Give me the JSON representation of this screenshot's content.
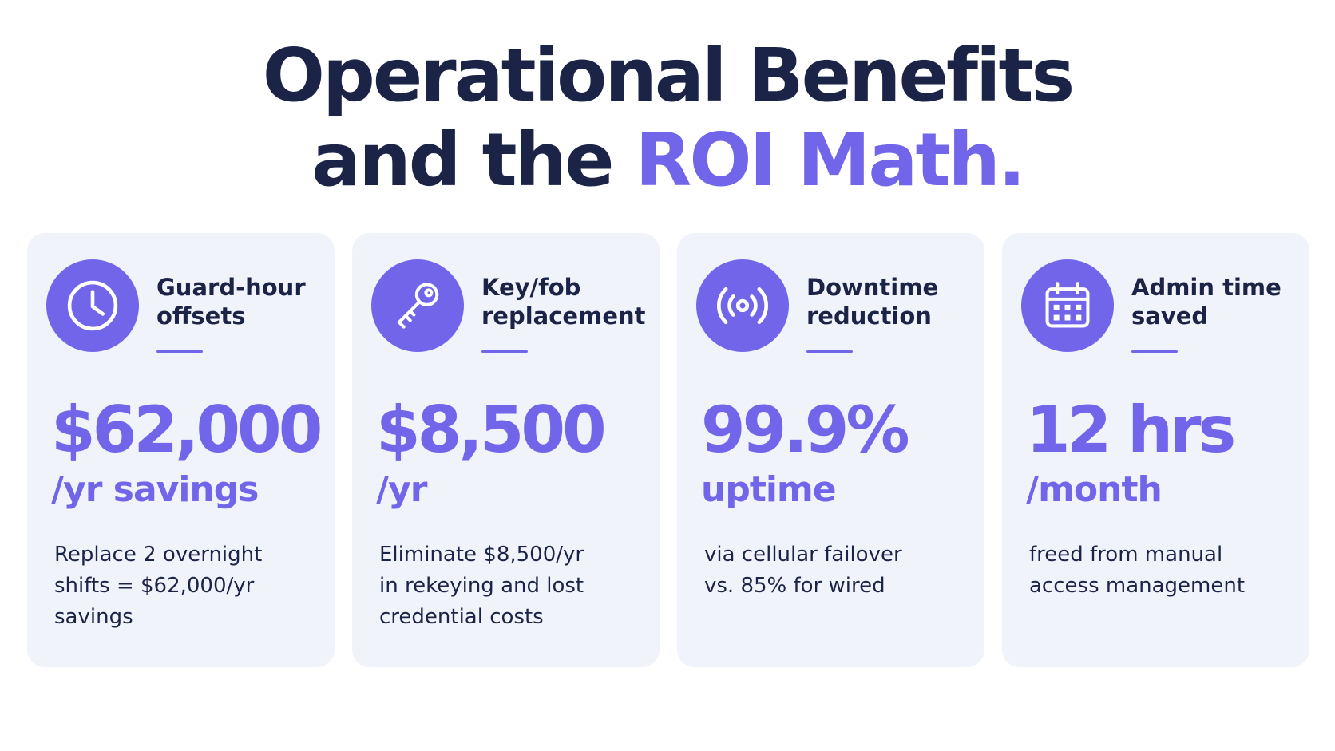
{
  "title": {
    "line1": "Operational Benefits",
    "line2_prefix": "and the ",
    "line2_accent": "ROI Math."
  },
  "colors": {
    "accent": "#7166ea",
    "heading": "#1b2447",
    "card_background": "#f1f3fb"
  },
  "cards": [
    {
      "icon": "clock-icon",
      "label": "Guard-hour\noffsets",
      "value": "$62,000",
      "unit": "/yr savings",
      "description": "Replace 2 overnight\nshifts = $62,000/yr\nsavings"
    },
    {
      "icon": "key-icon",
      "label": "Key/fob\nreplacement",
      "value": "$8,500",
      "unit": "/yr",
      "description": "Eliminate $8,500/yr\nin rekeying and lost\ncredential costs"
    },
    {
      "icon": "signal-icon",
      "label": "Downtime\nreduction",
      "value": "99.9%",
      "unit": "uptime",
      "description": "via cellular failover\nvs. 85% for wired"
    },
    {
      "icon": "calendar-icon",
      "label": "Admin time\nsaved",
      "value": "12 hrs",
      "unit": "/month",
      "description": "freed from manual\naccess management"
    }
  ]
}
